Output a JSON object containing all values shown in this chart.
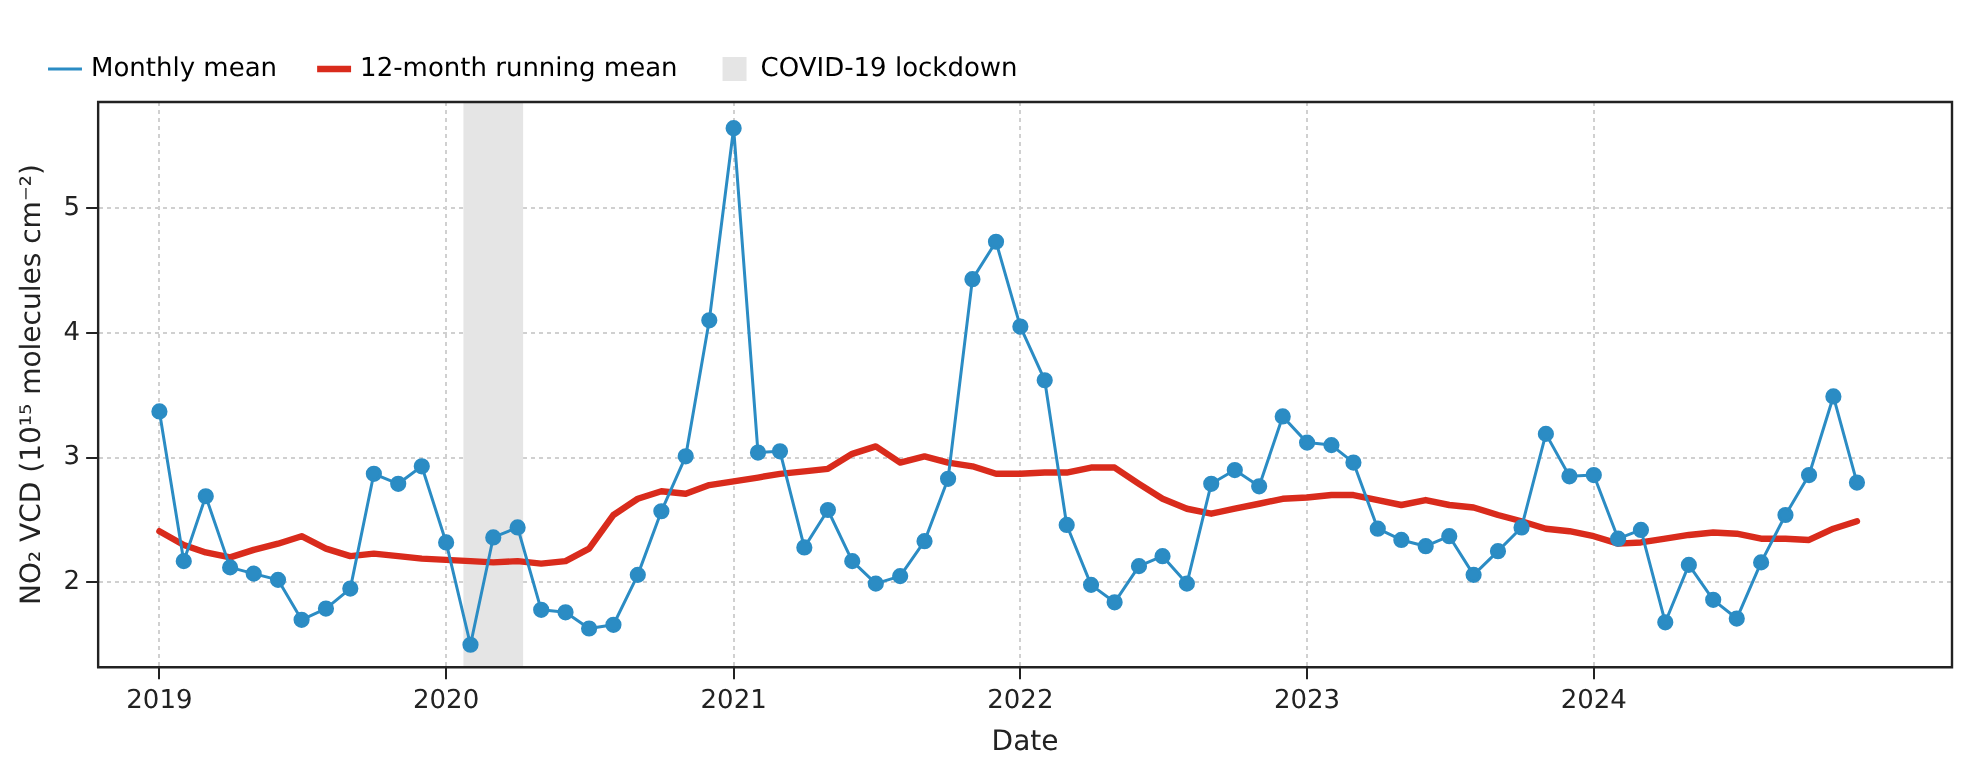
{
  "chart_data": {
    "type": "line",
    "xlabel": "Date",
    "ylabel": "NO₂ VCD (10¹⁵ molecules cm⁻²)",
    "x": [
      "2019-01",
      "2019-02",
      "2019-03",
      "2019-04",
      "2019-05",
      "2019-06",
      "2019-07",
      "2019-08",
      "2019-09",
      "2019-10",
      "2019-11",
      "2019-12",
      "2020-01",
      "2020-02",
      "2020-03",
      "2020-04",
      "2020-05",
      "2020-06",
      "2020-07",
      "2020-08",
      "2020-09",
      "2020-10",
      "2020-11",
      "2020-12",
      "2021-01",
      "2021-02",
      "2021-03",
      "2021-04",
      "2021-05",
      "2021-06",
      "2021-07",
      "2021-08",
      "2021-09",
      "2021-10",
      "2021-11",
      "2021-12",
      "2022-01",
      "2022-02",
      "2022-03",
      "2022-04",
      "2022-05",
      "2022-06",
      "2022-07",
      "2022-08",
      "2022-09",
      "2022-10",
      "2022-11",
      "2022-12",
      "2023-01",
      "2023-02",
      "2023-03",
      "2023-04",
      "2023-05",
      "2023-06",
      "2023-07",
      "2023-08",
      "2023-09",
      "2023-10",
      "2023-11",
      "2023-12",
      "2024-01",
      "2024-02",
      "2024-03",
      "2024-04",
      "2024-05",
      "2024-06",
      "2024-07",
      "2024-08",
      "2024-09",
      "2024-10",
      "2024-11",
      "2024-12"
    ],
    "series": [
      {
        "name": "Monthly mean",
        "color": "#2b8cc4",
        "marker": "circle",
        "values": [
          3.37,
          2.17,
          2.69,
          2.12,
          2.07,
          2.02,
          1.7,
          1.79,
          1.95,
          2.87,
          2.79,
          2.93,
          2.32,
          1.5,
          2.36,
          2.44,
          1.78,
          1.76,
          1.63,
          1.66,
          2.06,
          2.57,
          3.01,
          4.1,
          5.64,
          3.04,
          3.05,
          2.28,
          2.58,
          2.17,
          1.99,
          2.05,
          2.33,
          2.83,
          4.43,
          4.73,
          4.05,
          3.62,
          2.46,
          1.98,
          1.84,
          2.13,
          2.21,
          1.99,
          2.79,
          2.9,
          2.77,
          3.33,
          3.12,
          3.1,
          2.96,
          2.43,
          2.34,
          2.29,
          2.37,
          2.06,
          2.25,
          2.44,
          3.19,
          2.85,
          2.86,
          2.35,
          2.42,
          1.68,
          2.14,
          1.86,
          1.71,
          2.16,
          2.54,
          2.86,
          3.49,
          2.8
        ]
      },
      {
        "name": "12-month running mean",
        "color": "#d92b1c",
        "marker": "none",
        "values": [
          2.41,
          2.3,
          2.24,
          2.2,
          2.26,
          2.31,
          2.37,
          2.27,
          2.21,
          2.23,
          2.21,
          2.19,
          2.18,
          2.17,
          2.16,
          2.17,
          2.15,
          2.17,
          2.27,
          2.54,
          2.67,
          2.73,
          2.71,
          2.78,
          2.81,
          2.84,
          2.87,
          2.89,
          2.91,
          3.03,
          3.09,
          2.96,
          3.01,
          2.96,
          2.93,
          2.87,
          2.87,
          2.88,
          2.88,
          2.92,
          2.92,
          2.79,
          2.67,
          2.59,
          2.55,
          2.59,
          2.63,
          2.67,
          2.68,
          2.7,
          2.7,
          2.66,
          2.62,
          2.66,
          2.62,
          2.6,
          2.54,
          2.49,
          2.43,
          2.41,
          2.37,
          2.31,
          2.32,
          2.35,
          2.38,
          2.4,
          2.39,
          2.35,
          2.35,
          2.34,
          2.43,
          2.49
        ]
      }
    ],
    "bands": [
      {
        "axis": "x",
        "from": "2020-01-23",
        "to": "2020-04-08",
        "label": "COVID-19 lockdown",
        "color": "#e5e5e5"
      }
    ],
    "xlim": [
      "2018-10-15",
      "2025-04-01"
    ],
    "xticks": [
      "2019",
      "2020",
      "2021",
      "2022",
      "2023",
      "2024"
    ],
    "ylim": [
      1.32,
      5.85
    ],
    "yticks": [
      2,
      3,
      4,
      5
    ],
    "grid": true,
    "legend": "top left",
    "line_style": "solid"
  }
}
